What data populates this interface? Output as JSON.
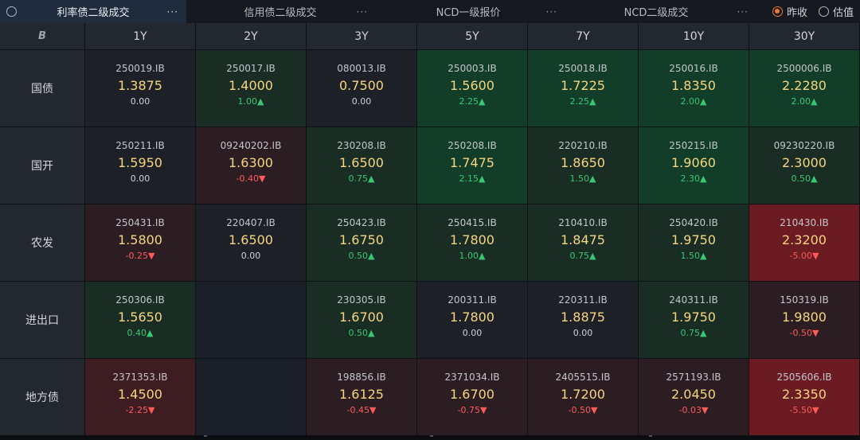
{
  "tabs": [
    {
      "label": "利率债二级成交",
      "more": "···",
      "active": true
    },
    {
      "label": "信用债二级成交",
      "more": "···",
      "active": false
    },
    {
      "label": "NCD一级报价",
      "more": "···",
      "active": false
    },
    {
      "label": "NCD二级成交",
      "more": "···",
      "active": false
    }
  ],
  "radios": [
    {
      "label": "昨收",
      "selected": true
    },
    {
      "label": "估值",
      "selected": false
    }
  ],
  "corner_label": "B",
  "tenors": [
    "1Y",
    "2Y",
    "3Y",
    "5Y",
    "7Y",
    "10Y",
    "30Y"
  ],
  "rows": [
    {
      "label": "国债",
      "cells": [
        {
          "code": "250019.IB",
          "yield": "1.3875",
          "change": "0.00",
          "dir": "flat",
          "tone": "neutral"
        },
        {
          "code": "250017.IB",
          "yield": "1.4000",
          "change": "1.00▲",
          "dir": "up",
          "tone": "g1"
        },
        {
          "code": "080013.IB",
          "yield": "0.7500",
          "change": "0.00",
          "dir": "flat",
          "tone": "neutral"
        },
        {
          "code": "250003.IB",
          "yield": "1.5600",
          "change": "2.25▲",
          "dir": "up",
          "tone": "g2"
        },
        {
          "code": "250018.IB",
          "yield": "1.7225",
          "change": "2.25▲",
          "dir": "up",
          "tone": "g2"
        },
        {
          "code": "250016.IB",
          "yield": "1.8350",
          "change": "2.00▲",
          "dir": "up",
          "tone": "g2"
        },
        {
          "code": "2500006.IB",
          "yield": "2.2280",
          "change": "2.00▲",
          "dir": "up",
          "tone": "g2"
        }
      ]
    },
    {
      "label": "国开",
      "cells": [
        {
          "code": "250211.IB",
          "yield": "1.5950",
          "change": "0.00",
          "dir": "flat",
          "tone": "neutral"
        },
        {
          "code": "09240202.IB",
          "yield": "1.6300",
          "change": "-0.40▼",
          "dir": "down",
          "tone": "r1"
        },
        {
          "code": "230208.IB",
          "yield": "1.6500",
          "change": "0.75▲",
          "dir": "up",
          "tone": "g1"
        },
        {
          "code": "250208.IB",
          "yield": "1.7475",
          "change": "2.15▲",
          "dir": "up",
          "tone": "g2"
        },
        {
          "code": "220210.IB",
          "yield": "1.8650",
          "change": "1.50▲",
          "dir": "up",
          "tone": "g1"
        },
        {
          "code": "250215.IB",
          "yield": "1.9060",
          "change": "2.30▲",
          "dir": "up",
          "tone": "g2"
        },
        {
          "code": "09230220.IB",
          "yield": "2.3000",
          "change": "0.50▲",
          "dir": "up",
          "tone": "g1"
        }
      ]
    },
    {
      "label": "农发",
      "cells": [
        {
          "code": "250431.IB",
          "yield": "1.5800",
          "change": "-0.25▼",
          "dir": "down",
          "tone": "r1"
        },
        {
          "code": "220407.IB",
          "yield": "1.6500",
          "change": "0.00",
          "dir": "flat",
          "tone": "neutral"
        },
        {
          "code": "250423.IB",
          "yield": "1.6750",
          "change": "0.50▲",
          "dir": "up",
          "tone": "g1"
        },
        {
          "code": "250415.IB",
          "yield": "1.7800",
          "change": "1.00▲",
          "dir": "up",
          "tone": "g1"
        },
        {
          "code": "210410.IB",
          "yield": "1.8475",
          "change": "0.75▲",
          "dir": "up",
          "tone": "g1"
        },
        {
          "code": "250420.IB",
          "yield": "1.9750",
          "change": "1.50▲",
          "dir": "up",
          "tone": "g1"
        },
        {
          "code": "210430.IB",
          "yield": "2.3200",
          "change": "-5.00▼",
          "dir": "down",
          "tone": "r3"
        }
      ]
    },
    {
      "label": "进出口",
      "cells": [
        {
          "code": "250306.IB",
          "yield": "1.5650",
          "change": "0.40▲",
          "dir": "up",
          "tone": "g1"
        },
        null,
        {
          "code": "230305.IB",
          "yield": "1.6700",
          "change": "0.50▲",
          "dir": "up",
          "tone": "g1"
        },
        {
          "code": "200311.IB",
          "yield": "1.7800",
          "change": "0.00",
          "dir": "flat",
          "tone": "neutral"
        },
        {
          "code": "220311.IB",
          "yield": "1.8875",
          "change": "0.00",
          "dir": "flat",
          "tone": "neutral"
        },
        {
          "code": "240311.IB",
          "yield": "1.9750",
          "change": "0.75▲",
          "dir": "up",
          "tone": "g1"
        },
        {
          "code": "150319.IB",
          "yield": "1.9800",
          "change": "-0.50▼",
          "dir": "down",
          "tone": "r1"
        }
      ]
    },
    {
      "label": "地方债",
      "cells": [
        {
          "code": "2371353.IB",
          "yield": "1.4500",
          "change": "-2.25▼",
          "dir": "down",
          "tone": "r2"
        },
        null,
        {
          "code": "198856.IB",
          "yield": "1.6125",
          "change": "-0.45▼",
          "dir": "down",
          "tone": "r1"
        },
        {
          "code": "2371034.IB",
          "yield": "1.6700",
          "change": "-0.75▼",
          "dir": "down",
          "tone": "r1"
        },
        {
          "code": "2405515.IB",
          "yield": "1.7200",
          "change": "-0.50▼",
          "dir": "down",
          "tone": "r1"
        },
        {
          "code": "2571193.IB",
          "yield": "2.0450",
          "change": "-0.03▼",
          "dir": "down",
          "tone": "r1"
        },
        {
          "code": "2505606.IB",
          "yield": "2.3350",
          "change": "-5.50▼",
          "dir": "down",
          "tone": "r3"
        }
      ]
    }
  ],
  "colors": {
    "accent_radio": "#f07a2c",
    "yield_text": "#f5d57f",
    "up": "#38c871",
    "down": "#ff5a5a"
  }
}
